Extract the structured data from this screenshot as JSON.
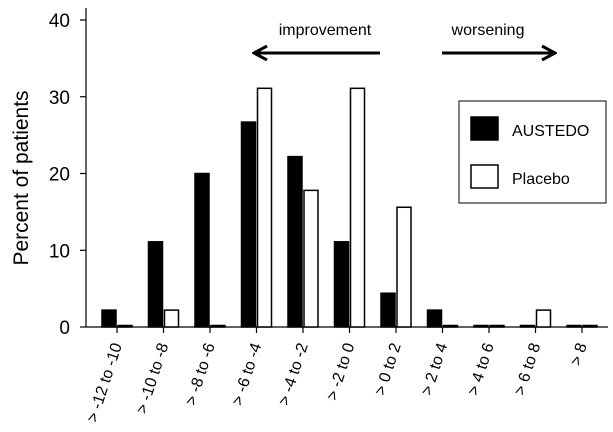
{
  "chart_data": {
    "type": "bar",
    "title": "",
    "xlabel": "",
    "ylabel": "Percent of patients",
    "ylim": [
      0,
      40
    ],
    "yticks": [
      0,
      10,
      20,
      30,
      40
    ],
    "grid": false,
    "legend_position": "right",
    "categories": [
      "> -12 to -10",
      "> -10 to -8",
      "> -8 to -6",
      "> -6 to -4",
      "> -4 to -2",
      "> -2 to 0",
      "> 0 to 2",
      "> 2 to 4",
      "> 4 to 6",
      "> 6 to 8",
      "> 8"
    ],
    "series": [
      {
        "name": "AUSTEDO",
        "color": "#000000",
        "values": [
          2.2,
          11.1,
          20.0,
          26.7,
          22.2,
          11.1,
          4.4,
          2.2,
          0,
          0,
          0
        ]
      },
      {
        "name": "Placebo",
        "color": "#ffffff",
        "values": [
          0,
          2.2,
          0,
          31.1,
          17.8,
          31.1,
          15.6,
          0,
          0,
          2.2,
          0
        ]
      }
    ],
    "annotations": {
      "improvement": "improvement",
      "worsening": "worsening"
    }
  }
}
